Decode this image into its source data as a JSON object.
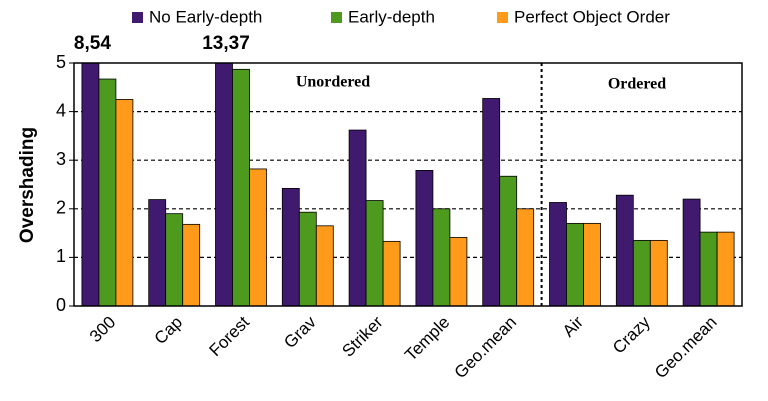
{
  "chart_data": {
    "type": "bar",
    "y_label": "Overshading",
    "categories": [
      "300",
      "Cap",
      "Forest",
      "Grav",
      "Striker",
      "Temple",
      "Geo.mean",
      "Air",
      "Crazy",
      "Geo.mean"
    ],
    "series": [
      {
        "name": "No Early-depth",
        "color": "#3f1a6e",
        "values": [
          8.54,
          2.19,
          13.37,
          2.42,
          3.62,
          2.79,
          4.27,
          2.13,
          2.28,
          2.2
        ],
        "value_labels": [
          "8,54",
          null,
          "13,37",
          null,
          null,
          null,
          null,
          null,
          null,
          null
        ]
      },
      {
        "name": "Early-depth",
        "color": "#4e9a1f",
        "values": [
          4.67,
          1.9,
          4.87,
          1.93,
          2.17,
          2.0,
          2.67,
          1.7,
          1.35,
          1.52
        ]
      },
      {
        "name": "Perfect Object Order",
        "color": "#ff9a1a",
        "values": [
          4.25,
          1.68,
          2.82,
          1.65,
          1.33,
          1.41,
          2.0,
          1.7,
          1.35,
          1.52
        ]
      }
    ],
    "annotations": [
      "Unordered",
      "Ordered"
    ],
    "ylim": [
      0,
      5
    ],
    "yticks": [
      0,
      1,
      2,
      3,
      4,
      5
    ],
    "grid": true
  }
}
